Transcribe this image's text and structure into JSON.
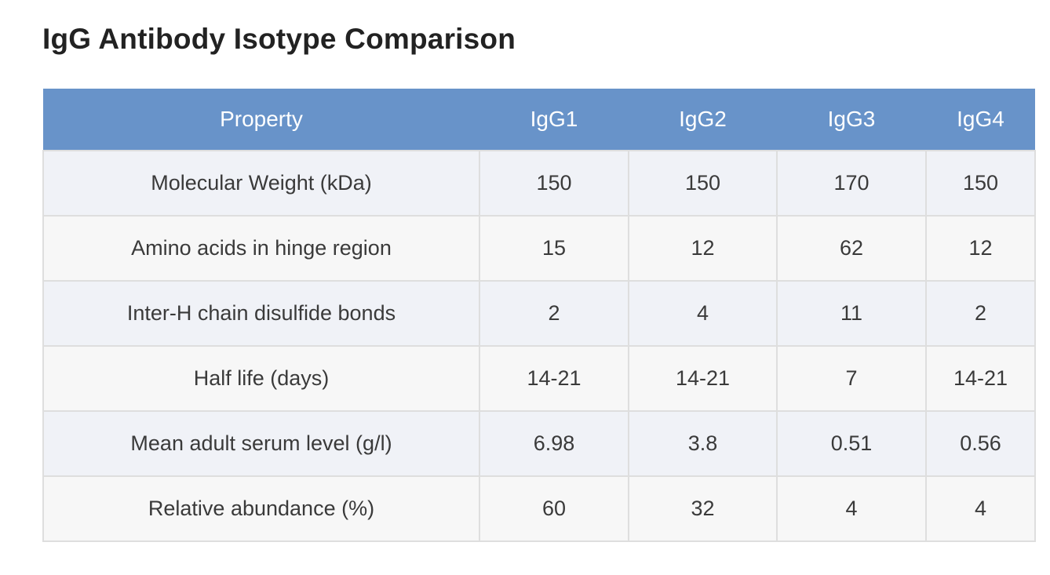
{
  "title": "IgG Antibody Isotype Comparison",
  "table": {
    "headers": [
      "Property",
      "IgG1",
      "IgG2",
      "IgG3",
      "IgG4"
    ],
    "rows": [
      [
        "Molecular Weight (kDa)",
        "150",
        "150",
        "170",
        "150"
      ],
      [
        "Amino acids in hinge region",
        "15",
        "12",
        "62",
        "12"
      ],
      [
        "Inter-H chain disulfide bonds",
        "2",
        "4",
        "11",
        "2"
      ],
      [
        "Half life (days)",
        "14-21",
        "14-21",
        "7",
        "14-21"
      ],
      [
        "Mean adult serum level (g/l)",
        "6.98",
        "3.8",
        "0.51",
        "0.56"
      ],
      [
        "Relative abundance (%)",
        "60",
        "32",
        "4",
        "4"
      ]
    ]
  },
  "colors": {
    "header_background": "#6893c9",
    "header_text": "#ffffff",
    "row_odd_background": "#f0f2f7",
    "row_even_background": "#f7f7f7",
    "grid_line": "#dedede"
  }
}
